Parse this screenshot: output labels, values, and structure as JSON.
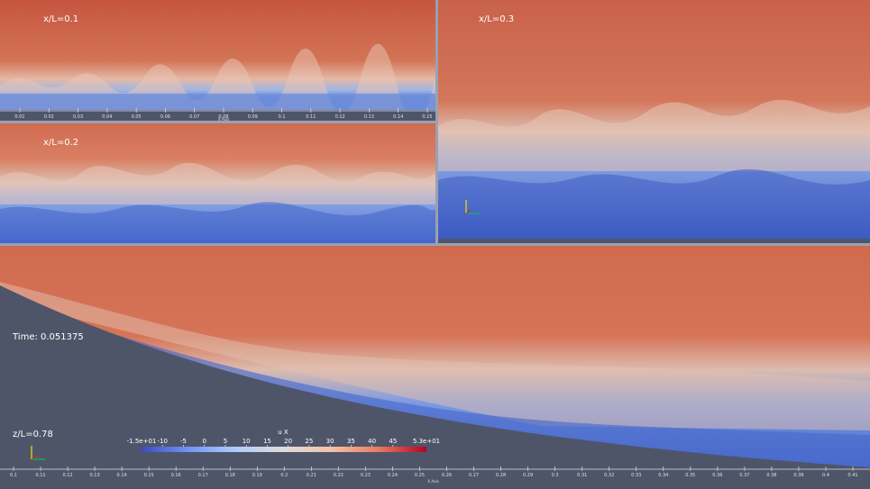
{
  "panels": {
    "p1": {
      "label": "x/L=0.1",
      "axis_title": "X Axis",
      "ticks": [
        "0.01",
        "0.02",
        "0.03",
        "0.04",
        "0.05",
        "0.06",
        "0.07",
        "0.08",
        "0.09",
        "0.1",
        "0.11",
        "0.12",
        "0.13",
        "0.14",
        "0.15"
      ]
    },
    "p2": {
      "label": "x/L=0.2"
    },
    "p3": {
      "label": "x/L=0.3"
    },
    "main": {
      "time_label": "Time: 0.051375",
      "z_label": "z/L=0.78",
      "axis_title": "X Axis",
      "ticks": [
        "0.1",
        "0.11",
        "0.12",
        "0.13",
        "0.14",
        "0.15",
        "0.16",
        "0.17",
        "0.18",
        "0.19",
        "0.2",
        "0.21",
        "0.22",
        "0.23",
        "0.24",
        "0.25",
        "0.26",
        "0.27",
        "0.28",
        "0.29",
        "0.3",
        "0.31",
        "0.32",
        "0.33",
        "0.34",
        "0.35",
        "0.36",
        "0.37",
        "0.38",
        "0.39",
        "0.4",
        "0.41"
      ]
    }
  },
  "colorbar": {
    "title": "u X",
    "min_label": "-1.5e+01",
    "max_label": "5.3e+01",
    "ticks": [
      "-10",
      "-5",
      "0",
      "5",
      "10",
      "15",
      "20",
      "25",
      "30",
      "35",
      "40",
      "45"
    ],
    "colors": [
      "#3b4cc0",
      "#7396f5",
      "#b0cbfc",
      "#dddcdc",
      "#f6bfa6",
      "#ea7b60",
      "#b40426"
    ]
  },
  "colors": {
    "background": "#4f5569",
    "hot": "#cc6a52",
    "cold": "#4d6fce",
    "mid": "#e4d2c8"
  }
}
